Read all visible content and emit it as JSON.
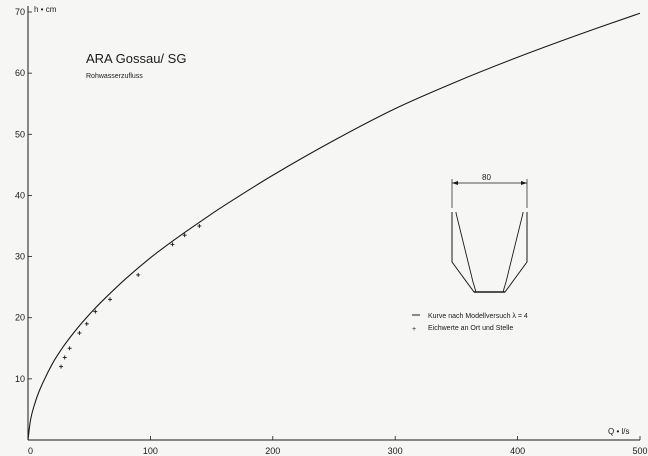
{
  "chart_data": {
    "type": "line",
    "title": "ARA Gossau/ SG",
    "subtitle": "Rohwasserzufluss",
    "xlabel": "Q • l/s",
    "ylabel": "h • cm",
    "xlim": [
      0,
      500
    ],
    "ylim": [
      0,
      70
    ],
    "x_ticks": [
      "0",
      "100",
      "200",
      "300",
      "400",
      "500"
    ],
    "y_ticks": [
      "10",
      "20",
      "30",
      "40",
      "50",
      "60",
      "70"
    ],
    "grid": false,
    "legend_position": "right-middle",
    "series": [
      {
        "name": "Kurve nach Modellversuch λ = 4",
        "kind": "line",
        "x": [
          0,
          2,
          5,
          10,
          20,
          30,
          40,
          50,
          60,
          80,
          100,
          120,
          140,
          160,
          200,
          250,
          300,
          350,
          400,
          450,
          500
        ],
        "y": [
          0,
          3.2,
          5.6,
          8.4,
          12.5,
          15.6,
          18.2,
          20.5,
          22.6,
          26.4,
          29.8,
          32.8,
          35.6,
          38.3,
          43.3,
          49.0,
          54.2,
          58.6,
          62.6,
          66.3,
          69.8
        ]
      },
      {
        "name": "Eichwerte an Ort und Stelle",
        "kind": "points",
        "x": [
          27,
          30,
          34,
          42,
          48,
          55,
          67,
          90,
          118,
          128,
          140
        ],
        "y": [
          12,
          13.5,
          15,
          17.5,
          19,
          21,
          23,
          27,
          32,
          33.5,
          35
        ]
      }
    ],
    "inset": {
      "label": "80"
    }
  }
}
